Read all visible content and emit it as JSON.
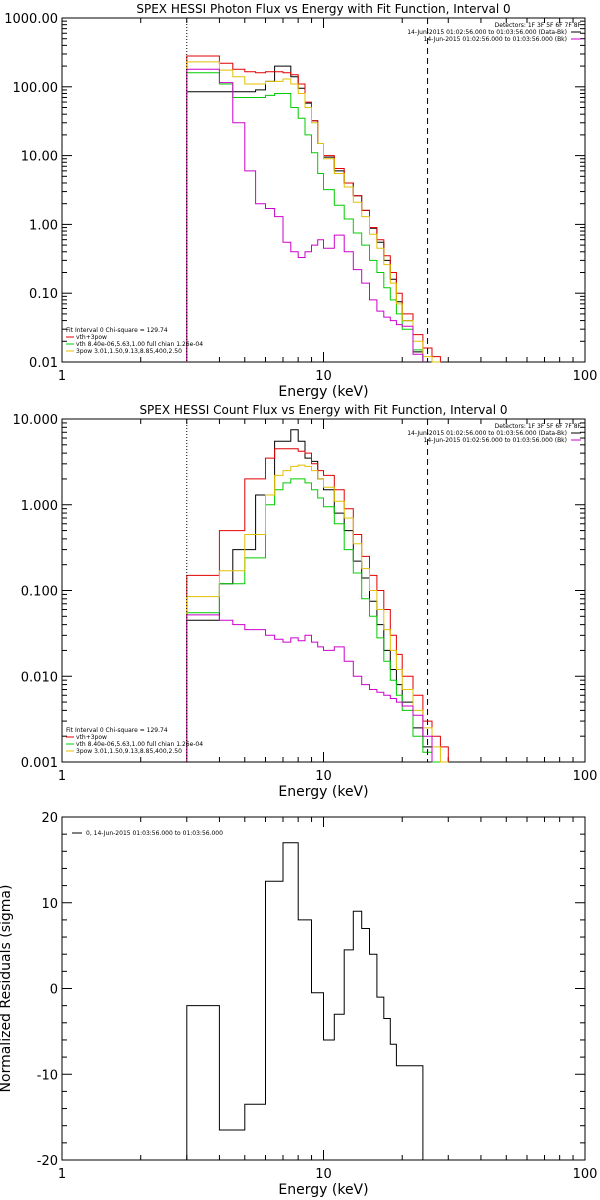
{
  "chart_data": [
    {
      "type": "line",
      "title": "SPEX HESSI Photon Flux vs Energy with Fit Function, Interval 0",
      "xlabel": "Energy (keV)",
      "ylabel": "",
      "xscale": "log",
      "yscale": "log",
      "xlim": [
        1,
        100
      ],
      "ylim": [
        0.01,
        1000
      ],
      "x_tick_labels": [
        "1",
        "10",
        "100"
      ],
      "y_tick_labels": [
        "0.01",
        "0.10",
        "1.00",
        "10.00",
        "100.00",
        "1000.00"
      ],
      "vertical_lines": [
        {
          "x": 3,
          "style": "dotted"
        },
        {
          "x": 25,
          "style": "dashed"
        }
      ],
      "legend_top": {
        "lines": [
          "Detectors: 1F 3F 5F 6F 7F 8F",
          "14-Jun-2015 01:02:56.000 to 01:03:56.000 (Data-Bk)",
          "14-Jun-2015 01:02:56.000 to 01:03:56.000 (Bk)"
        ],
        "colors": [
          "#000000",
          "#000000",
          "#cc00cc"
        ]
      },
      "legend_bottom": {
        "lines": [
          "Fit Interval 0   Chi-square = 129.74",
          "vth+3pow",
          "vth 8.40e-06,5.63,1.00  full chian 1.26e-04",
          "3pow 3.01,1.50,9.13,8.85,400,2.50"
        ],
        "colors": [
          null,
          "#e00000",
          "#00cc00",
          "#e0c000"
        ]
      },
      "x_edges": [
        3,
        3.5,
        4,
        4.5,
        5,
        5.5,
        6,
        6.5,
        7,
        7.5,
        8,
        8.5,
        9,
        9.5,
        10,
        11,
        12,
        13,
        14,
        15,
        16,
        17,
        18,
        19,
        20,
        22,
        24,
        26,
        28,
        30,
        32
      ],
      "series": [
        {
          "color": "#000000",
          "values": [
            85,
            85,
            85,
            85,
            85,
            90,
            120,
            200,
            200,
            140,
            95,
            58,
            32,
            15,
            9.5,
            6,
            4,
            2.6,
            1.6,
            0.88,
            0.55,
            0.3,
            0.16,
            0.075,
            0.04,
            0.014,
            null,
            null,
            null,
            null
          ]
        },
        {
          "color": "#e00000",
          "values": [
            280,
            280,
            220,
            180,
            165,
            160,
            165,
            165,
            160,
            150,
            110,
            60,
            32,
            15,
            10,
            6.5,
            4,
            2.6,
            1.6,
            0.9,
            0.6,
            0.35,
            0.2,
            0.1,
            0.05,
            0.025,
            0.016,
            0.012,
            null,
            null
          ]
        },
        {
          "color": "#00cc00",
          "values": [
            160,
            160,
            110,
            70,
            70,
            70,
            75,
            80,
            80,
            50,
            35,
            20,
            11,
            5.5,
            3.2,
            1.9,
            1.2,
            0.75,
            0.5,
            0.3,
            0.2,
            0.12,
            0.08,
            0.05,
            0.03,
            0.015,
            null,
            null,
            null,
            null
          ]
        },
        {
          "color": "#e0c000",
          "values": [
            230,
            230,
            175,
            140,
            110,
            110,
            120,
            120,
            130,
            110,
            80,
            50,
            30,
            15,
            9,
            5.5,
            3.5,
            2.1,
            1.3,
            0.72,
            0.45,
            0.26,
            0.14,
            0.07,
            0.04,
            0.02,
            0.012,
            0.01,
            null,
            null
          ]
        },
        {
          "color": "#cc00cc",
          "values": [
            180,
            180,
            115,
            30,
            6,
            2,
            1.7,
            1.3,
            0.55,
            0.4,
            0.33,
            0.4,
            0.5,
            0.6,
            0.45,
            0.7,
            0.4,
            0.22,
            0.14,
            0.08,
            0.055,
            0.045,
            0.04,
            0.035,
            0.033,
            0.013,
            null,
            null,
            null,
            null
          ]
        }
      ]
    },
    {
      "type": "line",
      "title": "SPEX HESSI Count Flux vs Energy with Fit Function, Interval 0",
      "xlabel": "Energy (keV)",
      "ylabel": "",
      "xscale": "log",
      "yscale": "log",
      "xlim": [
        1,
        100
      ],
      "ylim": [
        0.001,
        10
      ],
      "x_tick_labels": [
        "1",
        "10",
        "100"
      ],
      "y_tick_labels": [
        "0.001",
        "0.010",
        "0.100",
        "1.000",
        "10.000"
      ],
      "vertical_lines": [
        {
          "x": 3,
          "style": "dotted"
        },
        {
          "x": 25,
          "style": "dashed"
        }
      ],
      "legend_top": {
        "lines": [
          "Detectors: 1F 3F 5F 6F 7F 8F",
          "14-Jun-2015 01:02:56.000 to 01:03:56.000 (Data-Bk)",
          "14-Jun-2015 01:02:56.000 to 01:03:56.000 (Bk)"
        ],
        "colors": [
          "#000000",
          "#000000",
          "#cc00cc"
        ]
      },
      "legend_bottom": {
        "lines": [
          "Fit Interval 0   Chi-square = 129.74",
          "vth+3pow",
          "vth 8.40e-06,5.63,1.00  full chian 1.26e-04",
          "3pow 3.01,1.50,9.13,8.85,400,2.50"
        ],
        "colors": [
          null,
          "#e00000",
          "#00cc00",
          "#e0c000"
        ]
      },
      "x_edges": [
        3,
        3.5,
        4,
        4.5,
        5,
        5.5,
        6,
        6.5,
        7,
        7.5,
        8,
        8.5,
        9,
        9.5,
        10,
        11,
        12,
        13,
        14,
        15,
        16,
        17,
        18,
        19,
        20,
        22,
        24,
        26,
        28,
        30,
        32
      ],
      "series": [
        {
          "color": "#000000",
          "values": [
            0.045,
            0.045,
            0.12,
            0.3,
            0.3,
            1.3,
            1.3,
            5.5,
            5.5,
            7.5,
            5.5,
            3.5,
            3.2,
            2.0,
            1.5,
            0.8,
            0.5,
            0.22,
            0.14,
            0.075,
            0.04,
            0.02,
            0.012,
            0.008,
            0.005,
            0.0025,
            0.0015,
            null,
            null,
            null
          ]
        },
        {
          "color": "#e00000",
          "values": [
            0.15,
            0.15,
            0.5,
            0.5,
            2.0,
            2.0,
            3.5,
            4.5,
            4.5,
            4.5,
            4.2,
            4.0,
            3.0,
            2.5,
            2.2,
            1.5,
            0.9,
            0.45,
            0.25,
            0.15,
            0.1,
            0.06,
            0.03,
            0.018,
            0.01,
            0.006,
            0.003,
            0.002,
            0.0015,
            null
          ]
        },
        {
          "color": "#00cc00",
          "values": [
            0.055,
            0.055,
            0.12,
            0.12,
            0.24,
            0.24,
            1.0,
            1.5,
            1.8,
            2.0,
            2.0,
            1.8,
            1.5,
            1.2,
            0.95,
            0.6,
            0.3,
            0.16,
            0.08,
            0.05,
            0.028,
            0.015,
            0.009,
            0.006,
            0.004,
            0.002,
            0.0013,
            0.001,
            null,
            null
          ]
        },
        {
          "color": "#e0c000",
          "values": [
            0.085,
            0.085,
            0.17,
            0.17,
            0.45,
            0.45,
            1.3,
            2.2,
            2.5,
            2.8,
            2.9,
            2.8,
            2.5,
            2.0,
            1.6,
            1.1,
            0.7,
            0.35,
            0.18,
            0.1,
            0.06,
            0.035,
            0.02,
            0.012,
            0.007,
            0.004,
            0.0025,
            0.0015,
            0.001,
            null
          ]
        },
        {
          "color": "#cc00cc",
          "values": [
            0.052,
            0.052,
            0.045,
            0.04,
            0.035,
            0.035,
            0.03,
            0.027,
            0.025,
            0.028,
            0.026,
            0.03,
            0.025,
            0.022,
            0.02,
            0.022,
            0.015,
            0.01,
            0.008,
            0.007,
            0.0065,
            0.006,
            0.0055,
            0.005,
            0.0045,
            0.0035,
            0.002,
            null,
            null,
            null
          ]
        }
      ]
    },
    {
      "type": "line",
      "title": "",
      "xlabel": "Energy (keV)",
      "ylabel": "Normalized Residuals (sigma)",
      "xscale": "log",
      "yscale": "linear",
      "xlim": [
        1,
        100
      ],
      "ylim": [
        -20,
        20
      ],
      "x_tick_labels": [
        "1",
        "10",
        "100"
      ],
      "y_tick_labels": [
        "-20",
        "-10",
        "0",
        "10",
        "20"
      ],
      "legend_top": {
        "lines": [
          "0, 14-Jun-2015 01:03:56.000 to 01:03:56.000"
        ],
        "colors": [
          "#000000"
        ]
      },
      "x_edges": [
        3,
        3.5,
        4,
        4.5,
        5,
        5.5,
        6,
        6.5,
        7,
        7.5,
        8,
        8.5,
        9,
        9.5,
        10,
        11,
        12,
        13,
        14,
        15,
        16,
        17,
        18,
        19,
        20,
        22,
        24,
        26
      ],
      "series": [
        {
          "color": "#000000",
          "values": [
            -2,
            -2,
            -16.5,
            -16.5,
            -13.5,
            -13.5,
            12.5,
            12.5,
            17,
            17,
            8,
            8,
            -0.5,
            -0.5,
            -6,
            -3,
            4.5,
            9,
            7,
            4,
            -1,
            -3.5,
            -6.5,
            -9,
            -9,
            -9,
            -20
          ]
        }
      ]
    }
  ]
}
